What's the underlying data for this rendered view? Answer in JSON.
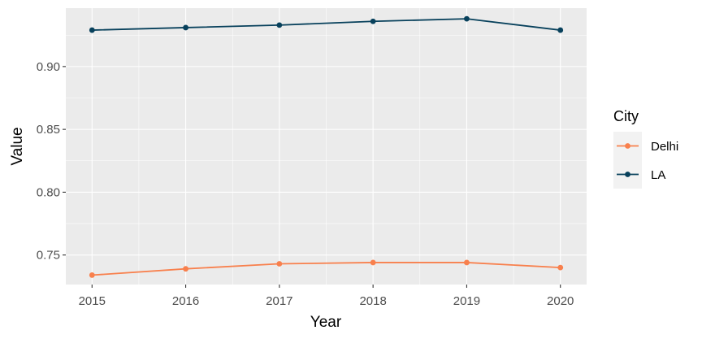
{
  "chart_data": {
    "type": "line",
    "xlabel": "Year",
    "ylabel": "Value",
    "x": [
      2015,
      2016,
      2017,
      2018,
      2019,
      2020
    ],
    "xlim": [
      2014.72,
      2020.28
    ],
    "ylim": [
      0.7265,
      0.9465
    ],
    "yticks": [
      0.75,
      0.8,
      0.85,
      0.9
    ],
    "ytick_labels": [
      "0.75",
      "0.80",
      "0.85",
      "0.90"
    ],
    "xtick_labels": [
      "2015",
      "2016",
      "2017",
      "2018",
      "2019",
      "2020"
    ],
    "series": [
      {
        "name": "Delhi",
        "color": "#F8804D",
        "values": [
          0.734,
          0.739,
          0.743,
          0.744,
          0.744,
          0.74
        ]
      },
      {
        "name": "LA",
        "color": "#08415C",
        "values": [
          0.929,
          0.931,
          0.933,
          0.936,
          0.938,
          0.929
        ]
      }
    ],
    "legend": {
      "title": "City",
      "position": "right"
    },
    "grid": true,
    "panel_background": "#EBEBEB"
  }
}
